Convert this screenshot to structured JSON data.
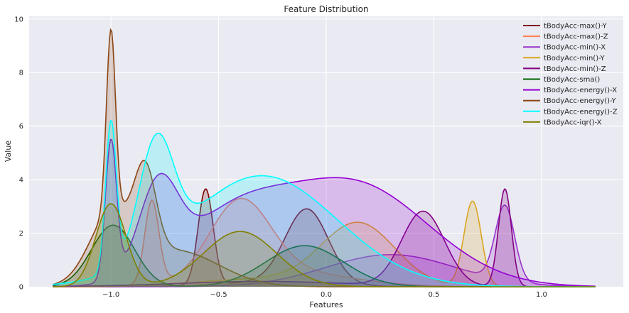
{
  "chart_data": {
    "type": "area",
    "title": "Feature Distribution",
    "xlabel": "Features",
    "ylabel": "Value",
    "xlim": [
      -1.38,
      1.38
    ],
    "ylim": [
      0,
      10.1
    ],
    "x_ticks": [
      -1.0,
      -0.5,
      0.0,
      0.5,
      1.0
    ],
    "x_tick_labels": [
      "−1.0",
      "−0.5",
      "0.0",
      "0.5",
      "1.0"
    ],
    "y_ticks": [
      0,
      2,
      4,
      6,
      8,
      10
    ],
    "y_tick_labels": [
      "0",
      "2",
      "4",
      "6",
      "8",
      "10"
    ],
    "grid": true,
    "legend_position": "top-right",
    "background": "#eaeaf2",
    "series": [
      {
        "name": "tBodyAcc-max()-Y",
        "color": "#7f0000",
        "components": [
          [
            0.62,
            -0.56,
            0.035
          ],
          [
            0.48,
            -0.09,
            0.1
          ],
          [
            0.03,
            -0.25,
            0.25
          ]
        ]
      },
      {
        "name": "tBodyAcc-max()-Z",
        "color": "#ff7f50",
        "components": [
          [
            0.55,
            -0.81,
            0.033
          ],
          [
            0.5,
            -0.4,
            0.14
          ],
          [
            0.1,
            -0.2,
            0.3
          ]
        ]
      },
      {
        "name": "tBodyAcc-min()-X",
        "color": "#9932cc",
        "components": [
          [
            0.7,
            0.83,
            0.045
          ],
          [
            0.3,
            0.3,
            0.3
          ]
        ]
      },
      {
        "name": "tBodyAcc-min()-Y",
        "color": "#daa520",
        "components": [
          [
            0.55,
            0.68,
            0.04
          ],
          [
            0.4,
            0.15,
            0.17
          ],
          [
            0.05,
            -0.3,
            0.3
          ]
        ]
      },
      {
        "name": "tBodyAcc-min()-Z",
        "color": "#800080",
        "components": [
          [
            0.55,
            0.83,
            0.03
          ],
          [
            0.42,
            0.45,
            0.1
          ],
          [
            0.03,
            -0.3,
            0.4
          ]
        ]
      },
      {
        "name": "tBodyAcc-sma()",
        "color": "#006400",
        "components": [
          [
            0.6,
            -0.99,
            0.1
          ],
          [
            0.4,
            -0.1,
            0.18
          ]
        ]
      },
      {
        "name": "tBodyAcc-energy()-X",
        "color": "#9400d3",
        "components": [
          [
            0.36,
            -1.0,
            0.026
          ],
          [
            0.22,
            -0.78,
            0.09
          ],
          [
            0.27,
            0.12,
            0.35
          ],
          [
            0.15,
            -0.45,
            0.25
          ]
        ]
      },
      {
        "name": "tBodyAcc-energy()-Y",
        "color": "#8b4513",
        "components": [
          [
            0.5,
            -1.0,
            0.021
          ],
          [
            0.22,
            -0.84,
            0.05
          ],
          [
            0.18,
            -1.0,
            0.1
          ],
          [
            0.1,
            -0.7,
            0.2
          ]
        ]
      },
      {
        "name": "tBodyAcc-energy()-Z",
        "color": "#00ffff",
        "components": [
          [
            0.4,
            -1.0,
            0.025
          ],
          [
            0.3,
            -0.79,
            0.08
          ],
          [
            0.3,
            -0.3,
            0.35
          ]
        ]
      },
      {
        "name": "tBodyAcc-iqr()-X",
        "color": "#808000",
        "components": [
          [
            0.6,
            -1.0,
            0.07
          ],
          [
            0.4,
            -0.4,
            0.17
          ]
        ]
      }
    ],
    "peaks": [
      3.65,
      3.3,
      3.05,
      3.2,
      3.65,
      2.3,
      5.5,
      9.6,
      6.2,
      3.1
    ]
  }
}
